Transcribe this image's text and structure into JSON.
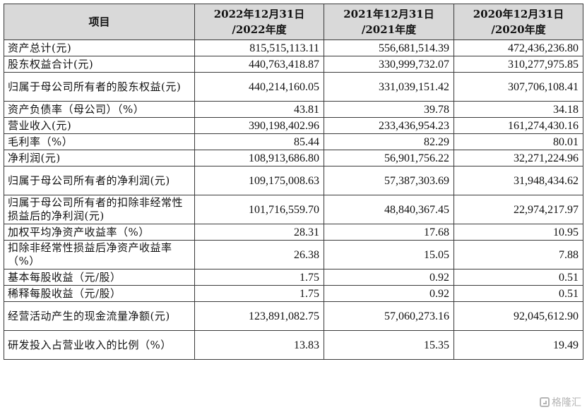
{
  "table": {
    "headers": [
      {
        "line1": "项目",
        "line2": ""
      },
      {
        "line1": "2022年12月31日",
        "line2": "/2022年度"
      },
      {
        "line1": "2021年12月31日",
        "line2": "/2021年度"
      },
      {
        "line1": "2020年12月31日",
        "line2": "/2020年度"
      }
    ],
    "rows": [
      {
        "label": "资产总计(元)",
        "values": [
          "815,515,113.11",
          "556,681,514.39",
          "472,436,236.80"
        ]
      },
      {
        "label": "股东权益合计(元)",
        "values": [
          "440,763,418.87",
          "330,999,732.07",
          "310,277,975.85"
        ]
      },
      {
        "label": "归属于母公司所有者的股东权益(元)",
        "values": [
          "440,214,160.05",
          "331,039,151.42",
          "307,706,108.41"
        ]
      },
      {
        "label": "资产负债率（母公司）（%）",
        "values": [
          "43.81",
          "39.78",
          "34.18"
        ]
      },
      {
        "label": "营业收入(元)",
        "values": [
          "390,198,402.96",
          "233,436,954.23",
          "161,274,430.16"
        ]
      },
      {
        "label": "毛利率（%）",
        "values": [
          "85.44",
          "82.29",
          "80.01"
        ]
      },
      {
        "label": "净利润(元)",
        "values": [
          "108,913,686.80",
          "56,901,756.22",
          "32,271,224.96"
        ]
      },
      {
        "label": "归属于母公司所有者的净利润(元)",
        "values": [
          "109,175,008.63",
          "57,387,303.69",
          "31,948,434.62"
        ]
      },
      {
        "label": "归属于母公司所有者的扣除非经常性损益后的净利润(元)",
        "values": [
          "101,716,559.70",
          "48,840,367.45",
          "22,974,217.97"
        ]
      },
      {
        "label": "加权平均净资产收益率（%）",
        "values": [
          "28.31",
          "17.68",
          "10.95"
        ]
      },
      {
        "label": "扣除非经常性损益后净资产收益率（%）",
        "values": [
          "26.38",
          "15.05",
          "7.88"
        ]
      },
      {
        "label": "基本每股收益（元/股）",
        "values": [
          "1.75",
          "0.92",
          "0.51"
        ]
      },
      {
        "label": "稀释每股收益（元/股）",
        "values": [
          "1.75",
          "0.92",
          "0.51"
        ]
      },
      {
        "label": "经营活动产生的现金流量净额(元)",
        "values": [
          "123,891,082.75",
          "57,060,273.16",
          "92,045,612.90"
        ]
      },
      {
        "label": "研发投入占营业收入的比例（%）",
        "values": [
          "13.83",
          "15.35",
          "19.49"
        ]
      }
    ]
  },
  "watermark": {
    "text": "格隆汇",
    "icon": "brand-logo-icon"
  },
  "colors": {
    "header_bg": "#d9d9d9",
    "border": "#3a3a3a",
    "text": "#111111"
  }
}
